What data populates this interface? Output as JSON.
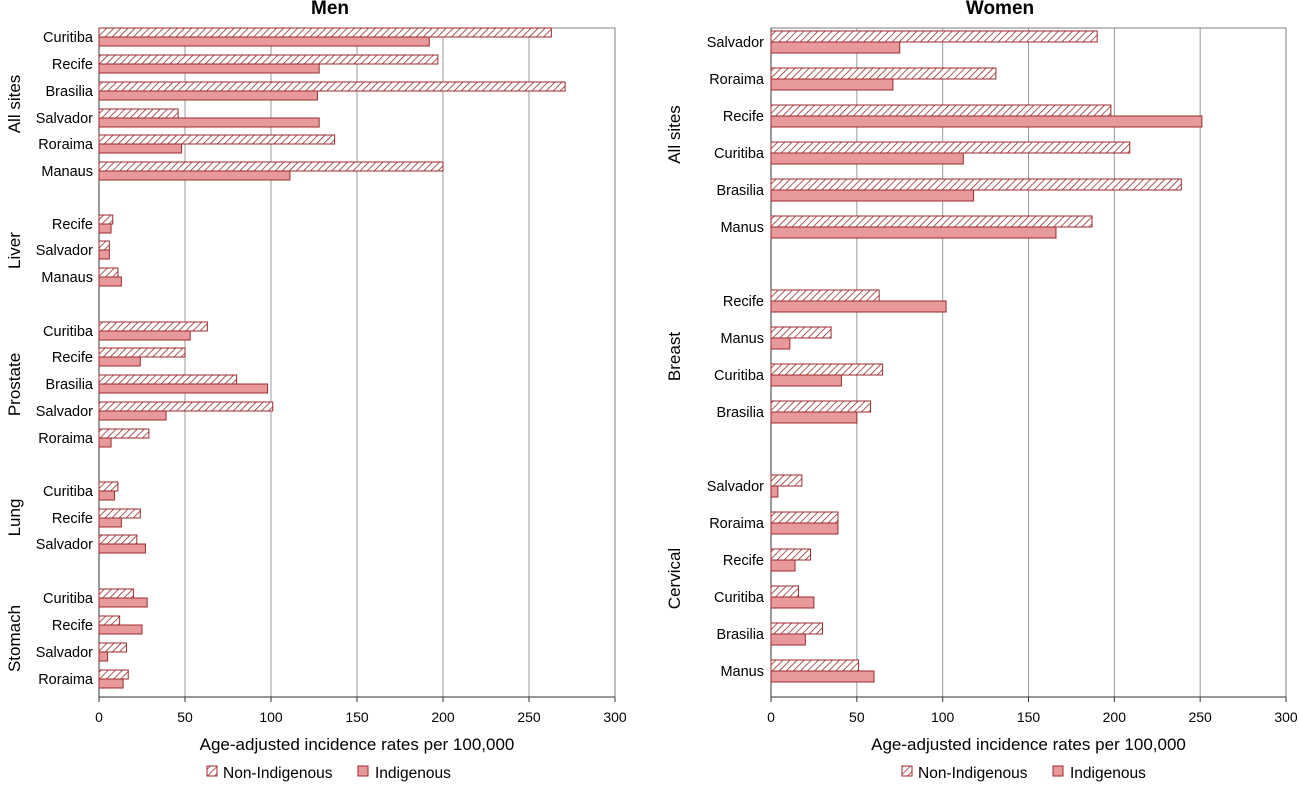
{
  "legend": {
    "non_indigenous": "Non-Indigenous",
    "indigenous": "Indigenous"
  },
  "colors": {
    "bar_fill": "#e8999c",
    "bar_stroke": "#9e2a2b",
    "hatch_line": "#9e2a2b",
    "grid": "#999999"
  },
  "chart_data": [
    {
      "type": "bar",
      "orientation": "horizontal",
      "title": "Men",
      "xlabel": "Age-adjusted incidence rates per 100,000",
      "ylabel": "",
      "xlim": [
        0,
        300
      ],
      "xticks": [
        "0",
        "50",
        "100",
        "150",
        "200",
        "250",
        "300"
      ],
      "grid": true,
      "legend_position": "bottom",
      "groups": [
        {
          "name": "All sites",
          "categories": [
            "Curitiba",
            "Recife",
            "Brasilia",
            "Salvador",
            "Roraima",
            "Manaus"
          ],
          "series": [
            {
              "name": "Non-Indigenous",
              "values": [
                263,
                197,
                271,
                46,
                137,
                200
              ]
            },
            {
              "name": "Indigenous",
              "values": [
                192,
                128,
                127,
                128,
                48,
                111
              ]
            }
          ]
        },
        {
          "name": "Liver",
          "categories": [
            "Recife",
            "Salvador",
            "Manaus"
          ],
          "series": [
            {
              "name": "Non-Indigenous",
              "values": [
                8,
                6,
                11
              ]
            },
            {
              "name": "Indigenous",
              "values": [
                7,
                6,
                13
              ]
            }
          ]
        },
        {
          "name": "Prostate",
          "categories": [
            "Curitiba",
            "Recife",
            "Brasilia",
            "Salvador",
            "Roraima"
          ],
          "series": [
            {
              "name": "Non-Indigenous",
              "values": [
                63,
                50,
                80,
                101,
                29
              ]
            },
            {
              "name": "Indigenous",
              "values": [
                53,
                24,
                98,
                39,
                7
              ]
            }
          ]
        },
        {
          "name": "Lung",
          "categories": [
            "Curitiba",
            "Recife",
            "Salvador"
          ],
          "series": [
            {
              "name": "Non-Indigenous",
              "values": [
                11,
                24,
                22
              ]
            },
            {
              "name": "Indigenous",
              "values": [
                9,
                13,
                27
              ]
            }
          ]
        },
        {
          "name": "Stomach",
          "categories": [
            "Curitiba",
            "Recife",
            "Salvador",
            "Roraima"
          ],
          "series": [
            {
              "name": "Non-Indigenous",
              "values": [
                20,
                12,
                16,
                17
              ]
            },
            {
              "name": "Indigenous",
              "values": [
                28,
                25,
                5,
                14
              ]
            }
          ]
        }
      ]
    },
    {
      "type": "bar",
      "orientation": "horizontal",
      "title": "Women",
      "xlabel": "Age-adjusted incidence rates per 100,000",
      "ylabel": "",
      "xlim": [
        0,
        300
      ],
      "xticks": [
        "0",
        "50",
        "100",
        "150",
        "200",
        "250",
        "300"
      ],
      "grid": true,
      "legend_position": "bottom",
      "groups": [
        {
          "name": "All sites",
          "categories": [
            "Salvador",
            "Roraima",
            "Recife",
            "Curitiba",
            "Brasilia",
            "Manus"
          ],
          "series": [
            {
              "name": "Non-Indigenous",
              "values": [
                190,
                131,
                198,
                209,
                239,
                187
              ]
            },
            {
              "name": "Indigenous",
              "values": [
                75,
                71,
                251,
                112,
                118,
                166
              ]
            }
          ]
        },
        {
          "name": "Breast",
          "categories": [
            "Recife",
            "Manus",
            "Curitiba",
            "Brasilia"
          ],
          "series": [
            {
              "name": "Non-Indigenous",
              "values": [
                63,
                35,
                65,
                58
              ]
            },
            {
              "name": "Indigenous",
              "values": [
                102,
                11,
                41,
                50
              ]
            }
          ]
        },
        {
          "name": "Cervical",
          "categories": [
            "Salvador",
            "Roraima",
            "Recife",
            "Curitiba",
            "Brasilia",
            "Manus"
          ],
          "series": [
            {
              "name": "Non-Indigenous",
              "values": [
                18,
                39,
                23,
                16,
                30,
                51
              ]
            },
            {
              "name": "Indigenous",
              "values": [
                4,
                39,
                14,
                25,
                20,
                60
              ]
            }
          ]
        }
      ]
    }
  ]
}
